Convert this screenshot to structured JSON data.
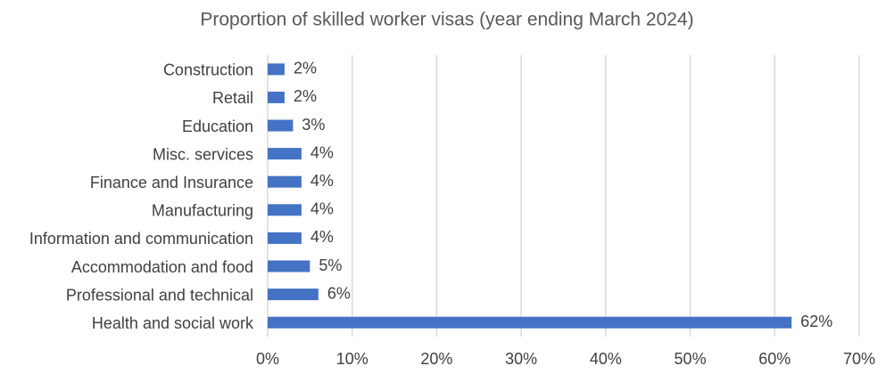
{
  "chart_data": {
    "type": "barh",
    "title": "Proportion of skilled worker visas (year ending March 2024)",
    "categories": [
      "Construction",
      "Retail",
      "Education",
      "Misc. services",
      "Finance and Insurance",
      "Manufacturing",
      "Information and communication",
      "Accommodation and food",
      "Professional and technical",
      "Health and social work"
    ],
    "values": [
      2,
      2,
      3,
      4,
      4,
      4,
      4,
      5,
      6,
      62
    ],
    "value_labels": [
      "2%",
      "2%",
      "3%",
      "4%",
      "4%",
      "4%",
      "4%",
      "5%",
      "6%",
      "62%"
    ],
    "color": "#4472c4",
    "xlim": [
      0,
      70
    ],
    "xticks": [
      {
        "value": 0,
        "label": "0%"
      },
      {
        "value": 10,
        "label": "10%"
      },
      {
        "value": 20,
        "label": "20%"
      },
      {
        "value": 30,
        "label": "30%"
      },
      {
        "value": 40,
        "label": "40%"
      },
      {
        "value": 50,
        "label": "50%"
      },
      {
        "value": 60,
        "label": "60%"
      },
      {
        "value": 70,
        "label": "70%"
      }
    ],
    "grid": true
  }
}
